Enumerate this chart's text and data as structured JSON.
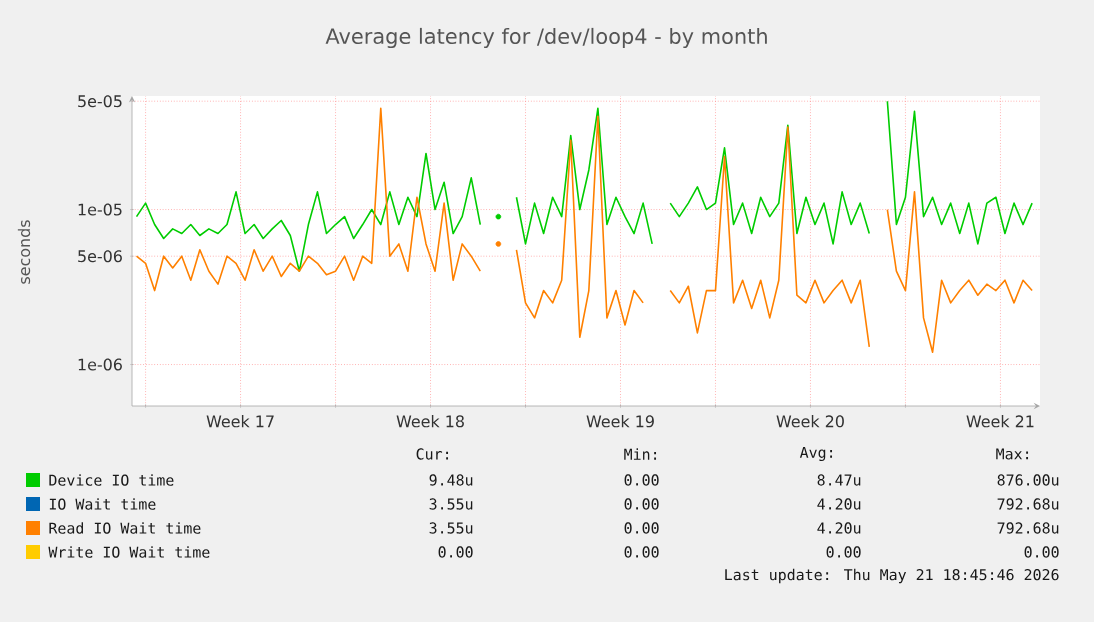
{
  "chart_data": {
    "type": "line",
    "title": "Average latency for /dev/loop4 - by month",
    "ylabel": "seconds",
    "log": "y",
    "grid": true,
    "legend": "bottom",
    "xlim": [
      "2026-04-19T12:00",
      "2026-05-22T23:00"
    ],
    "xticks": [
      {
        "value": "2026-04-20T00:00",
        "label": null
      },
      {
        "value": "2026-04-23T12:00",
        "label": "Week 17"
      },
      {
        "value": "2026-04-27T00:00",
        "label": null
      },
      {
        "value": "2026-04-30T12:00",
        "label": "Week 18"
      },
      {
        "value": "2026-05-04T00:00",
        "label": null
      },
      {
        "value": "2026-05-07T12:00",
        "label": "Week 19"
      },
      {
        "value": "2026-05-11T00:00",
        "label": null
      },
      {
        "value": "2026-05-14T12:00",
        "label": "Week 20"
      },
      {
        "value": "2026-05-18T00:00",
        "label": null
      },
      {
        "value": "2026-05-21T12:00",
        "label": "Week 21"
      }
    ],
    "ylim": [
      5.4e-07,
      5.4e-05
    ],
    "yticks": [
      {
        "value": 1e-06,
        "label": "1e-06"
      },
      {
        "value": 5e-06,
        "label": "5e-06"
      },
      {
        "value": 1e-05,
        "label": "1e-05"
      },
      {
        "value": 5e-05,
        "label": "5e-05"
      }
    ],
    "x": [
      "2026-04-19T16:00",
      "2026-04-20T00:00",
      "2026-04-20T08:00",
      "2026-04-20T16:00",
      "2026-04-21T00:00",
      "2026-04-21T08:00",
      "2026-04-21T16:00",
      "2026-04-22T00:00",
      "2026-04-22T08:00",
      "2026-04-22T16:00",
      "2026-04-23T00:00",
      "2026-04-23T08:00",
      "2026-04-23T16:00",
      "2026-04-24T00:00",
      "2026-04-24T08:00",
      "2026-04-24T16:00",
      "2026-04-25T00:00",
      "2026-04-25T08:00",
      "2026-04-25T16:00",
      "2026-04-26T00:00",
      "2026-04-26T08:00",
      "2026-04-26T16:00",
      "2026-04-27T00:00",
      "2026-04-27T08:00",
      "2026-04-27T16:00",
      "2026-04-28T00:00",
      "2026-04-28T08:00",
      "2026-04-28T16:00",
      "2026-04-29T00:00",
      "2026-04-29T08:00",
      "2026-04-29T16:00",
      "2026-04-30T00:00",
      "2026-04-30T08:00",
      "2026-04-30T16:00",
      "2026-05-01T00:00",
      "2026-05-01T08:00",
      "2026-05-01T16:00",
      "2026-05-02T00:00",
      "2026-05-02T08:00",
      "2026-05-02T16:00",
      "2026-05-03T00:00",
      "2026-05-03T08:00",
      "2026-05-03T16:00",
      "2026-05-04T00:00",
      "2026-05-04T08:00",
      "2026-05-04T16:00",
      "2026-05-05T00:00",
      "2026-05-05T08:00",
      "2026-05-05T16:00",
      "2026-05-06T00:00",
      "2026-05-06T08:00",
      "2026-05-06T16:00",
      "2026-05-07T00:00",
      "2026-05-07T08:00",
      "2026-05-07T16:00",
      "2026-05-08T00:00",
      "2026-05-08T08:00",
      "2026-05-08T16:00",
      "2026-05-09T00:00",
      "2026-05-09T08:00",
      "2026-05-09T16:00",
      "2026-05-10T00:00",
      "2026-05-10T08:00",
      "2026-05-10T16:00",
      "2026-05-11T00:00",
      "2026-05-11T08:00",
      "2026-05-11T16:00",
      "2026-05-12T00:00",
      "2026-05-12T08:00",
      "2026-05-12T16:00",
      "2026-05-13T00:00",
      "2026-05-13T08:00",
      "2026-05-13T16:00",
      "2026-05-14T00:00",
      "2026-05-14T08:00",
      "2026-05-14T16:00",
      "2026-05-15T00:00",
      "2026-05-15T08:00",
      "2026-05-15T16:00",
      "2026-05-16T00:00",
      "2026-05-16T08:00",
      "2026-05-16T16:00",
      "2026-05-17T00:00",
      "2026-05-17T08:00",
      "2026-05-17T16:00",
      "2026-05-18T00:00",
      "2026-05-18T08:00",
      "2026-05-18T16:00",
      "2026-05-19T00:00",
      "2026-05-19T08:00",
      "2026-05-19T16:00",
      "2026-05-20T00:00",
      "2026-05-20T08:00",
      "2026-05-20T16:00",
      "2026-05-21T00:00",
      "2026-05-21T08:00",
      "2026-05-21T16:00",
      "2026-05-22T00:00",
      "2026-05-22T08:00",
      "2026-05-22T16:00"
    ],
    "series": [
      {
        "name": "Device IO time",
        "color": "#00cc00",
        "values": [
          9e-06,
          1.1e-05,
          8e-06,
          6.5e-06,
          7.5e-06,
          7e-06,
          8e-06,
          6.8e-06,
          7.5e-06,
          7e-06,
          8e-06,
          1.3e-05,
          7e-06,
          8e-06,
          6.5e-06,
          7.5e-06,
          8.5e-06,
          6.8e-06,
          4e-06,
          8e-06,
          1.3e-05,
          7e-06,
          8e-06,
          9e-06,
          6.5e-06,
          8e-06,
          1e-05,
          8e-06,
          1.3e-05,
          8e-06,
          1.2e-05,
          9e-06,
          2.3e-05,
          1e-05,
          1.5e-05,
          7e-06,
          9e-06,
          1.6e-05,
          8e-06,
          null,
          9e-06,
          null,
          1.2e-05,
          6e-06,
          1.1e-05,
          7e-06,
          1.2e-05,
          9e-06,
          3e-05,
          1e-05,
          1.8e-05,
          4.5e-05,
          8e-06,
          1.2e-05,
          9e-06,
          7e-06,
          1.1e-05,
          6e-06,
          null,
          1.1e-05,
          9e-06,
          1.1e-05,
          1.4e-05,
          1e-05,
          1.1e-05,
          2.5e-05,
          8e-06,
          1.1e-05,
          7e-06,
          1.2e-05,
          9e-06,
          1.1e-05,
          3.5e-05,
          7e-06,
          1.2e-05,
          8e-06,
          1.1e-05,
          6e-06,
          1.3e-05,
          8e-06,
          1.1e-05,
          7e-06,
          null,
          5e-05,
          8e-06,
          1.2e-05,
          4.3e-05,
          9e-06,
          1.2e-05,
          8e-06,
          1.1e-05,
          7e-06,
          1.1e-05,
          6e-06,
          1.1e-05,
          1.2e-05,
          7e-06,
          1.1e-05,
          8e-06,
          1.1e-05
        ]
      },
      {
        "name": "IO Wait time",
        "color": "#0066b3",
        "values": [
          null,
          null,
          null,
          null,
          null,
          null,
          null,
          null,
          null,
          null,
          null,
          null,
          null,
          null,
          null,
          null,
          null,
          null,
          null,
          null,
          null,
          null,
          null,
          null,
          null,
          null,
          null,
          null,
          null,
          null,
          null,
          null,
          null,
          null,
          null,
          null,
          null,
          null,
          null,
          null,
          null,
          null,
          null,
          null,
          null,
          null,
          null,
          null,
          null,
          null,
          null,
          null,
          null,
          null,
          null,
          null,
          null,
          null,
          null,
          null,
          null,
          null,
          null,
          null,
          null,
          null,
          null,
          null,
          null,
          null,
          null,
          null,
          null,
          null,
          null,
          null,
          null,
          null,
          null,
          null,
          null,
          null,
          null,
          null,
          null,
          null,
          null,
          null,
          null,
          null,
          null,
          null,
          null,
          null,
          null,
          null,
          null,
          null,
          null,
          null
        ]
      },
      {
        "name": "Read IO Wait time",
        "color": "#ff8000",
        "values": [
          5e-06,
          4.5e-06,
          3e-06,
          5e-06,
          4.2e-06,
          5e-06,
          3.5e-06,
          5.5e-06,
          4e-06,
          3.3e-06,
          5e-06,
          4.5e-06,
          3.5e-06,
          5.5e-06,
          4e-06,
          5e-06,
          3.7e-06,
          4.5e-06,
          4e-06,
          5e-06,
          4.5e-06,
          3.8e-06,
          4e-06,
          5e-06,
          3.5e-06,
          5e-06,
          4.5e-06,
          4.5e-05,
          5e-06,
          6e-06,
          4e-06,
          1.2e-05,
          6e-06,
          4e-06,
          1.1e-05,
          3.5e-06,
          6e-06,
          5e-06,
          4e-06,
          null,
          6e-06,
          null,
          5.5e-06,
          2.5e-06,
          2e-06,
          3e-06,
          2.5e-06,
          3.5e-06,
          2.8e-05,
          1.5e-06,
          3e-06,
          4e-05,
          2e-06,
          3e-06,
          1.8e-06,
          3e-06,
          2.5e-06,
          null,
          null,
          3e-06,
          2.5e-06,
          3.2e-06,
          1.6e-06,
          3e-06,
          3e-06,
          2.2e-05,
          2.5e-06,
          3.5e-06,
          2.3e-06,
          3.5e-06,
          2e-06,
          3.5e-06,
          3.4e-05,
          2.8e-06,
          2.5e-06,
          3.5e-06,
          2.5e-06,
          3e-06,
          3.5e-06,
          2.5e-06,
          3.5e-06,
          1.3e-06,
          null,
          1e-05,
          4e-06,
          3e-06,
          1.3e-05,
          2e-06,
          1.2e-06,
          3.5e-06,
          2.5e-06,
          3e-06,
          3.5e-06,
          2.8e-06,
          3.3e-06,
          3e-06,
          3.5e-06,
          2.5e-06,
          3.5e-06,
          3e-06
        ]
      },
      {
        "name": "Write IO Wait time",
        "color": "#ffcc00",
        "values": [
          null,
          null,
          null,
          null,
          null,
          null,
          null,
          null,
          null,
          null,
          null,
          null,
          null,
          null,
          null,
          null,
          null,
          null,
          null,
          null,
          null,
          null,
          null,
          null,
          null,
          null,
          null,
          null,
          null,
          null,
          null,
          null,
          null,
          null,
          null,
          null,
          null,
          null,
          null,
          null,
          null,
          null,
          null,
          null,
          null,
          null,
          null,
          null,
          null,
          null,
          null,
          null,
          null,
          null,
          null,
          null,
          null,
          null,
          null,
          null,
          null,
          null,
          null,
          null,
          null,
          null,
          null,
          null,
          null,
          null,
          null,
          null,
          null,
          null,
          null,
          null,
          null,
          null,
          null,
          null,
          null,
          null,
          null,
          null,
          null,
          null,
          null,
          null,
          null,
          null,
          null,
          null,
          null,
          null,
          null,
          null,
          null,
          null,
          null,
          null
        ]
      }
    ],
    "annotations": [
      "Cur:",
      "Min:",
      "Avg:",
      "Max:",
      "9.48u",
      "0.00",
      "8.47u",
      "876.00u",
      "3.55u",
      "0.00",
      "4.20u",
      "792.68u",
      "3.55u",
      "0.00",
      "4.20u",
      "792.68u",
      "0.00",
      "0.00",
      "0.00",
      "0.00",
      "Last update: Thu May 21 18:45:46 2026"
    ]
  }
}
